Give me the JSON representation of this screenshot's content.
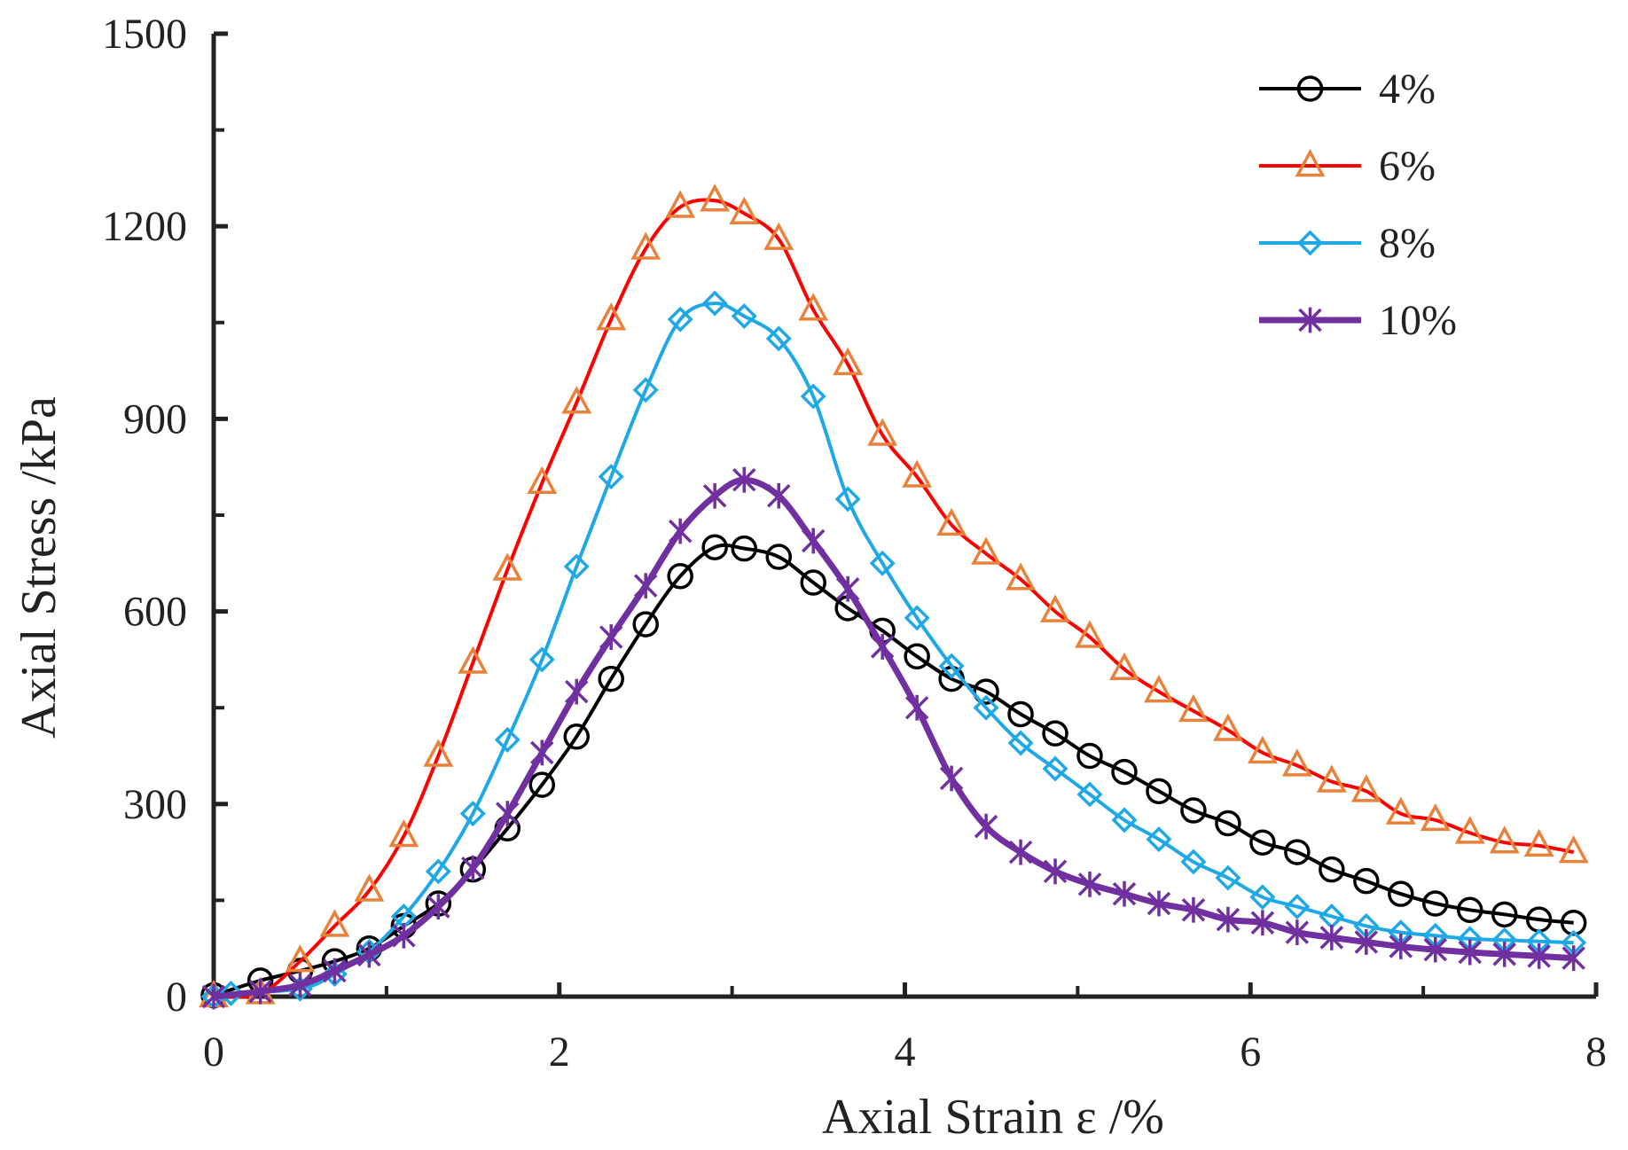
{
  "chart_data": {
    "type": "line",
    "title": "",
    "xlabel": "Axial Strain ε /%",
    "ylabel": "Axial Stress  /kPa",
    "xlim": [
      0,
      8
    ],
    "ylim": [
      0,
      1500
    ],
    "xticks": [
      "0",
      "2",
      "4",
      "6",
      "8"
    ],
    "yticks": [
      "0",
      "300",
      "600",
      "900",
      "1200",
      "1500"
    ],
    "legend_position": "top-right",
    "grid": false,
    "series": [
      {
        "name": "4%",
        "color": "#000000",
        "marker": "circle",
        "x": [
          0,
          0.27,
          0.5,
          0.7,
          0.9,
          1.1,
          1.3,
          1.5,
          1.7,
          1.9,
          2.1,
          2.3,
          2.5,
          2.7,
          2.9,
          3.07,
          3.27,
          3.47,
          3.67,
          3.87,
          4.07,
          4.27,
          4.47,
          4.67,
          4.87,
          5.07,
          5.27,
          5.47,
          5.67,
          5.87,
          6.07,
          6.27,
          6.47,
          6.67,
          6.87,
          7.07,
          7.27,
          7.47,
          7.67,
          7.87
        ],
        "y": [
          2,
          25,
          40,
          55,
          75,
          110,
          145,
          198,
          262,
          330,
          405,
          495,
          580,
          655,
          700,
          698,
          685,
          645,
          605,
          570,
          530,
          495,
          475,
          440,
          410,
          375,
          350,
          320,
          290,
          270,
          240,
          225,
          198,
          180,
          160,
          145,
          135,
          128,
          120,
          115
        ]
      },
      {
        "name": "6%",
        "color": "#ff0000",
        "marker_color": "#e8823a",
        "marker": "triangle",
        "x": [
          0,
          0.27,
          0.5,
          0.7,
          0.9,
          1.1,
          1.3,
          1.5,
          1.7,
          1.9,
          2.1,
          2.3,
          2.5,
          2.7,
          2.9,
          3.07,
          3.27,
          3.47,
          3.67,
          3.87,
          4.07,
          4.27,
          4.47,
          4.67,
          4.87,
          5.07,
          5.27,
          5.47,
          5.67,
          5.87,
          6.07,
          6.27,
          6.47,
          6.67,
          6.87,
          7.07,
          7.27,
          7.47,
          7.67,
          7.87
        ],
        "y": [
          0,
          5,
          55,
          110,
          165,
          250,
          375,
          520,
          665,
          800,
          925,
          1055,
          1165,
          1230,
          1240,
          1220,
          1180,
          1070,
          985,
          875,
          810,
          735,
          690,
          650,
          600,
          560,
          510,
          475,
          445,
          415,
          380,
          360,
          335,
          320,
          285,
          275,
          255,
          240,
          235,
          225
        ]
      },
      {
        "name": "8%",
        "color": "#1ea8e6",
        "marker": "diamond",
        "x": [
          0,
          0.1,
          0.5,
          0.7,
          0.9,
          1.1,
          1.3,
          1.5,
          1.7,
          1.9,
          2.1,
          2.3,
          2.5,
          2.7,
          2.9,
          3.07,
          3.27,
          3.47,
          3.67,
          3.87,
          4.07,
          4.27,
          4.47,
          4.67,
          4.87,
          5.07,
          5.27,
          5.47,
          5.67,
          5.87,
          6.07,
          6.27,
          6.47,
          6.67,
          6.87,
          7.07,
          7.27,
          7.47,
          7.67,
          7.87
        ],
        "y": [
          0,
          5,
          12,
          35,
          70,
          125,
          195,
          285,
          400,
          525,
          670,
          810,
          945,
          1055,
          1080,
          1060,
          1025,
          935,
          775,
          675,
          590,
          515,
          450,
          395,
          355,
          315,
          275,
          245,
          210,
          185,
          155,
          140,
          125,
          110,
          100,
          95,
          90,
          88,
          86,
          84
        ]
      },
      {
        "name": "10%",
        "color": "#7030a0",
        "marker": "asterisk",
        "x": [
          0,
          0.27,
          0.5,
          0.7,
          0.9,
          1.1,
          1.3,
          1.5,
          1.7,
          1.9,
          2.1,
          2.3,
          2.5,
          2.7,
          2.9,
          3.07,
          3.27,
          3.47,
          3.67,
          3.87,
          4.07,
          4.27,
          4.47,
          4.67,
          4.87,
          5.07,
          5.27,
          5.47,
          5.67,
          5.87,
          6.07,
          6.27,
          6.47,
          6.67,
          6.87,
          7.07,
          7.27,
          7.47,
          7.67,
          7.87
        ],
        "y": [
          0,
          8,
          18,
          40,
          65,
          95,
          140,
          200,
          285,
          380,
          475,
          560,
          640,
          725,
          780,
          805,
          780,
          710,
          635,
          545,
          450,
          340,
          265,
          225,
          195,
          175,
          160,
          145,
          135,
          120,
          115,
          100,
          92,
          85,
          78,
          73,
          69,
          66,
          63,
          60
        ]
      }
    ]
  }
}
